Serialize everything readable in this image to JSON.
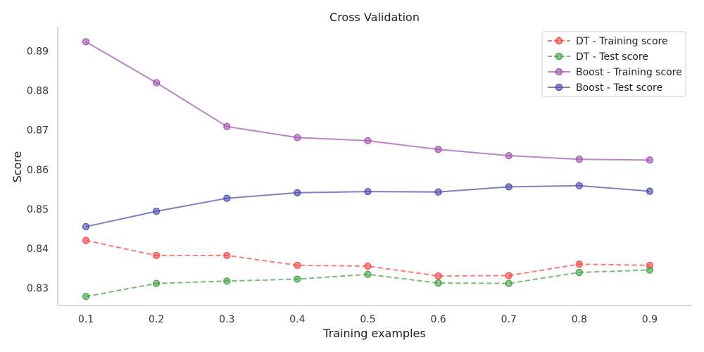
{
  "chart_data": {
    "type": "line",
    "title": "Cross Validation",
    "xlabel": "Training examples",
    "ylabel": "Score",
    "x": [
      0.1,
      0.2,
      0.3,
      0.4,
      0.5,
      0.6,
      0.7,
      0.8,
      0.9
    ],
    "x_ticks": [
      "0.1",
      "0.2",
      "0.3",
      "0.4",
      "0.5",
      "0.6",
      "0.7",
      "0.8",
      "0.9"
    ],
    "y_ticks": [
      "0.83",
      "0.84",
      "0.85",
      "0.86",
      "0.87",
      "0.88",
      "0.89"
    ],
    "xlim": [
      0.06,
      0.96
    ],
    "ylim": [
      0.8255,
      0.8962
    ],
    "grid": false,
    "legend_position": "top-right",
    "series": [
      {
        "name": "DT - Training score",
        "color": "#ff4040",
        "dash": "dashed",
        "values": [
          0.842,
          0.8382,
          0.8382,
          0.8357,
          0.8355,
          0.833,
          0.8331,
          0.836,
          0.8357
        ]
      },
      {
        "name": "DT - Test score",
        "color": "#3ca03c",
        "dash": "dashed",
        "values": [
          0.8278,
          0.8311,
          0.8317,
          0.8322,
          0.8334,
          0.8312,
          0.8311,
          0.8339,
          0.8345
        ]
      },
      {
        "name": "Boost - Training score",
        "color": "#a050b0",
        "dash": "solid",
        "values": [
          0.8924,
          0.882,
          0.8709,
          0.8681,
          0.8673,
          0.8651,
          0.8635,
          0.8626,
          0.8624
        ]
      },
      {
        "name": "Boost - Test score",
        "color": "#4848b0",
        "dash": "solid",
        "values": [
          0.8455,
          0.8494,
          0.8527,
          0.8541,
          0.8544,
          0.8543,
          0.8556,
          0.8559,
          0.8545
        ]
      }
    ]
  }
}
